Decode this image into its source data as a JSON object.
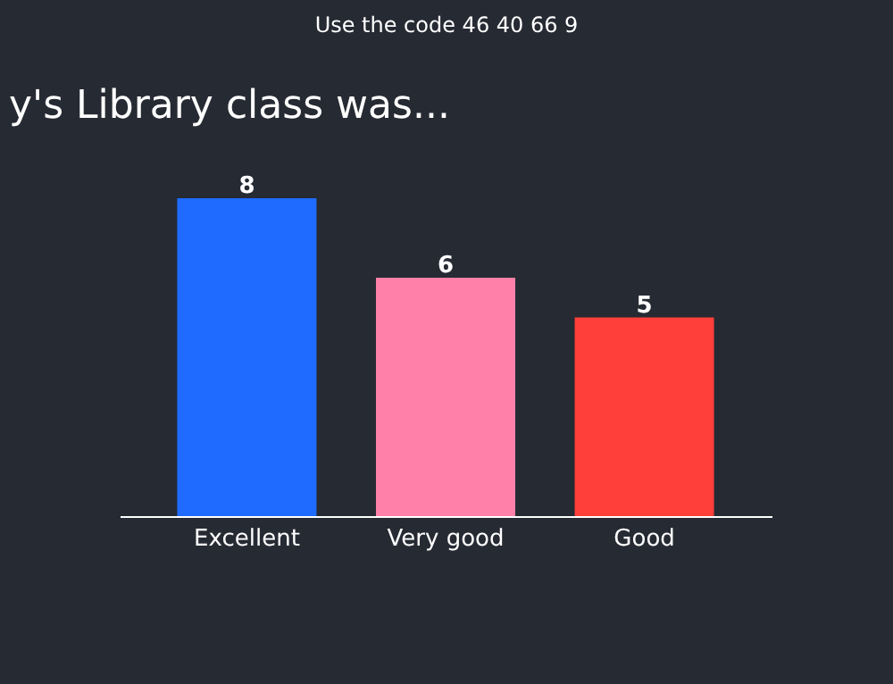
{
  "chart_data": {
    "type": "bar",
    "title": "y's Library class was...",
    "categories": [
      "Excellent",
      "Very good",
      "Good"
    ],
    "values": [
      8,
      6,
      5
    ],
    "colors": [
      "#1f6bff",
      "#ff80a8",
      "#ff3f3a"
    ],
    "data_labels": true,
    "annotations": [
      "Use the code 46 40 66 9"
    ]
  }
}
